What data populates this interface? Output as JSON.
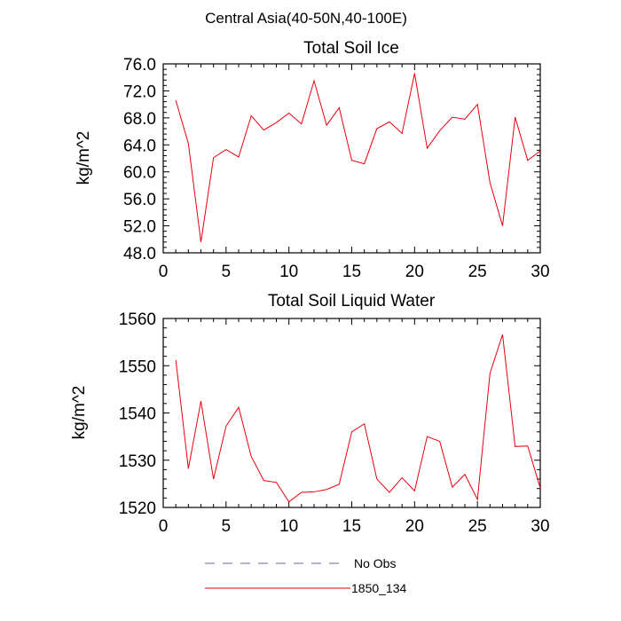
{
  "figure": {
    "title": "Central Asia(40-50N,40-100E)"
  },
  "colors": {
    "series_red": "#e8000b",
    "obs_dash": "#6a6aa0",
    "axis": "#000000"
  },
  "legend": {
    "entries": [
      {
        "label": "No Obs",
        "style": "dashed",
        "color": "#6a6aa0"
      },
      {
        "label": "1850_134",
        "style": "solid",
        "color": "#e8000b"
      }
    ]
  },
  "chart_data": [
    {
      "type": "line",
      "title": "Total Soil Ice",
      "xlabel": "",
      "ylabel": "kg/m^2",
      "xlim": [
        0,
        30
      ],
      "ylim": [
        48,
        76
      ],
      "xticks": [
        0,
        5,
        10,
        15,
        20,
        25,
        30
      ],
      "xtick_labels": [
        "0",
        "5",
        "10",
        "15",
        "20",
        "25",
        "30"
      ],
      "yticks": [
        48,
        52,
        56,
        60,
        64,
        68,
        72,
        76
      ],
      "ytick_labels": [
        "48.0",
        "52.0",
        "56.0",
        "60.0",
        "64.0",
        "68.0",
        "72.0",
        "76.0"
      ],
      "grid": false,
      "series": [
        {
          "name": "1850_134",
          "color": "#e8000b",
          "x": [
            1,
            2,
            3,
            4,
            5,
            6,
            7,
            8,
            9,
            10,
            11,
            12,
            13,
            14,
            15,
            16,
            17,
            18,
            19,
            20,
            21,
            22,
            23,
            24,
            25,
            26,
            27,
            28,
            29,
            30
          ],
          "values": [
            70.6,
            64.2,
            49.6,
            62.1,
            63.3,
            62.2,
            68.3,
            66.2,
            67.3,
            68.7,
            67.1,
            73.5,
            66.9,
            69.5,
            61.7,
            61.2,
            66.4,
            67.4,
            65.7,
            74.6,
            63.5,
            66.1,
            68.1,
            67.8,
            70.0,
            58.4,
            52.0,
            68.1,
            61.7,
            63.1
          ]
        }
      ]
    },
    {
      "type": "line",
      "title": "Total Soil Liquid Water",
      "xlabel": "",
      "ylabel": "kg/m^2",
      "xlim": [
        0,
        30
      ],
      "ylim": [
        1520,
        1560
      ],
      "xticks": [
        0,
        5,
        10,
        15,
        20,
        25,
        30
      ],
      "xtick_labels": [
        "0",
        "5",
        "10",
        "15",
        "20",
        "25",
        "30"
      ],
      "yticks": [
        1520,
        1530,
        1540,
        1550,
        1560
      ],
      "ytick_labels": [
        "1520",
        "1530",
        "1540",
        "1550",
        "1560"
      ],
      "grid": false,
      "series": [
        {
          "name": "1850_134",
          "color": "#e8000b",
          "x": [
            1,
            2,
            3,
            4,
            5,
            6,
            7,
            8,
            9,
            10,
            11,
            12,
            13,
            14,
            15,
            16,
            17,
            18,
            19,
            20,
            21,
            22,
            23,
            24,
            25,
            26,
            27,
            28,
            29,
            30
          ],
          "values": [
            1551.2,
            1528.2,
            1542.5,
            1526.0,
            1537.2,
            1541.2,
            1530.8,
            1525.7,
            1525.3,
            1521.2,
            1523.2,
            1523.3,
            1523.8,
            1524.9,
            1536.0,
            1537.7,
            1526.0,
            1523.2,
            1526.3,
            1523.5,
            1535.0,
            1534.0,
            1524.3,
            1527.0,
            1521.7,
            1548.4,
            1556.6,
            1532.9,
            1533.0,
            1524.1
          ]
        }
      ]
    }
  ]
}
